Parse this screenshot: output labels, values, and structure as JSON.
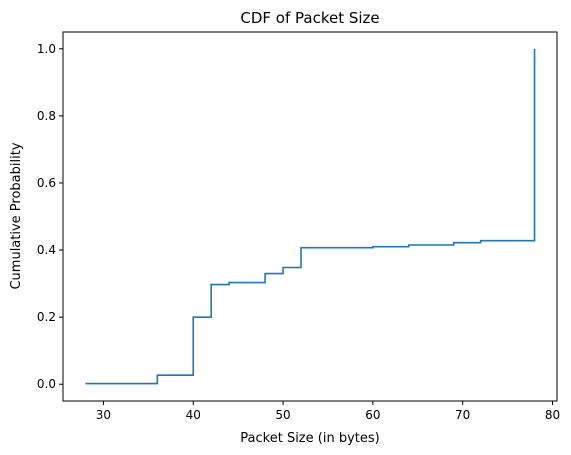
{
  "chart_data": {
    "type": "line",
    "title": "CDF of Packet Size",
    "xlabel": "Packet Size (in bytes)",
    "ylabel": "Cumulative Probability",
    "xlim": [
      25.5,
      80.5
    ],
    "ylim": [
      -0.05,
      1.05
    ],
    "xticks": [
      30,
      40,
      50,
      60,
      70,
      80
    ],
    "xtick_labels": [
      "30",
      "40",
      "50",
      "60",
      "70",
      "80"
    ],
    "yticks": [
      0.0,
      0.2,
      0.4,
      0.6,
      0.8,
      1.0
    ],
    "ytick_labels": [
      "0.0",
      "0.2",
      "0.4",
      "0.6",
      "0.8",
      "1.0"
    ],
    "grid": false,
    "series": [
      {
        "color": "#1f77b4",
        "step": "post",
        "x": [
          28,
          36,
          40,
          42,
          44,
          48,
          50,
          52,
          60,
          64,
          69,
          72,
          78
        ],
        "y": [
          0.002,
          0.027,
          0.2,
          0.297,
          0.303,
          0.33,
          0.348,
          0.407,
          0.41,
          0.415,
          0.422,
          0.428,
          1.0
        ]
      }
    ]
  }
}
